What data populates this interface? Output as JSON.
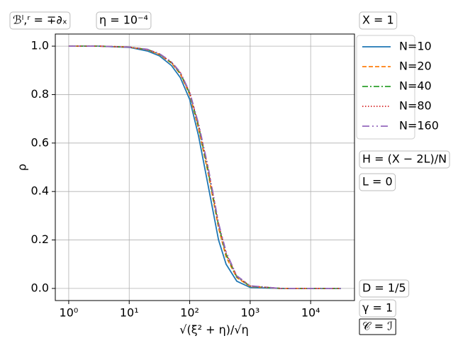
{
  "chart_data": {
    "type": "line",
    "x_label": "√(ξ² + η)/√η",
    "y_label": "ρ",
    "xscale": "log",
    "grid": true,
    "legend": "outside right upper",
    "xlim": [
      0.6,
      53000
    ],
    "ylim": [
      -0.05,
      1.05
    ],
    "xticks": [
      {
        "value": 1,
        "label": "10⁰"
      },
      {
        "value": 10,
        "label": "10¹"
      },
      {
        "value": 100,
        "label": "10²"
      },
      {
        "value": 1000,
        "label": "10³"
      },
      {
        "value": 10000,
        "label": "10⁴"
      }
    ],
    "yticks": [
      {
        "value": 0,
        "label": "0.0"
      },
      0.2,
      0.4,
      0.6,
      0.8,
      {
        "value": 1,
        "label": "1.0"
      }
    ],
    "x": [
      1,
      3.16,
      10,
      20,
      31.6,
      50,
      70,
      100,
      140,
      200,
      300,
      400,
      600,
      1000,
      3162,
      10000,
      31623
    ],
    "series": [
      {
        "name": "N=10",
        "color": "#1f77b4",
        "linestyle": "solid",
        "values": [
          1,
          1,
          0.995,
          0.98,
          0.96,
          0.92,
          0.87,
          0.78,
          0.63,
          0.43,
          0.2,
          0.1,
          0.03,
          0.004,
          0,
          0,
          0
        ]
      },
      {
        "name": "N=20",
        "color": "#ff7f0e",
        "linestyle": "dashed",
        "values": [
          1,
          1,
          0.996,
          0.985,
          0.965,
          0.93,
          0.885,
          0.8,
          0.66,
          0.48,
          0.25,
          0.13,
          0.045,
          0.008,
          0,
          0,
          0
        ]
      },
      {
        "name": "N=40",
        "color": "#2ca02c",
        "linestyle": "dashdot",
        "values": [
          1,
          1,
          0.996,
          0.986,
          0.967,
          0.932,
          0.888,
          0.805,
          0.67,
          0.49,
          0.26,
          0.14,
          0.048,
          0.009,
          0,
          0,
          0
        ]
      },
      {
        "name": "N=80",
        "color": "#d62728",
        "linestyle": "dotted",
        "values": [
          1,
          1,
          0.996,
          0.986,
          0.968,
          0.933,
          0.89,
          0.808,
          0.675,
          0.5,
          0.265,
          0.145,
          0.05,
          0.01,
          0,
          0,
          0
        ]
      },
      {
        "name": "N=160",
        "color": "#9467bd",
        "linestyle": "longdash",
        "values": [
          1,
          1,
          0.996,
          0.987,
          0.969,
          0.935,
          0.892,
          0.81,
          0.68,
          0.505,
          0.27,
          0.15,
          0.052,
          0.011,
          0,
          0,
          0
        ]
      }
    ],
    "annotations": [
      "ℬˡ,ʳ = ∓∂ₓ",
      "η = 10⁻⁴",
      "X = 1",
      "H = (X − 2L)/N",
      "L = 0",
      "D = 1/5",
      "γ = 1",
      "𝒞 = ℐ"
    ]
  }
}
